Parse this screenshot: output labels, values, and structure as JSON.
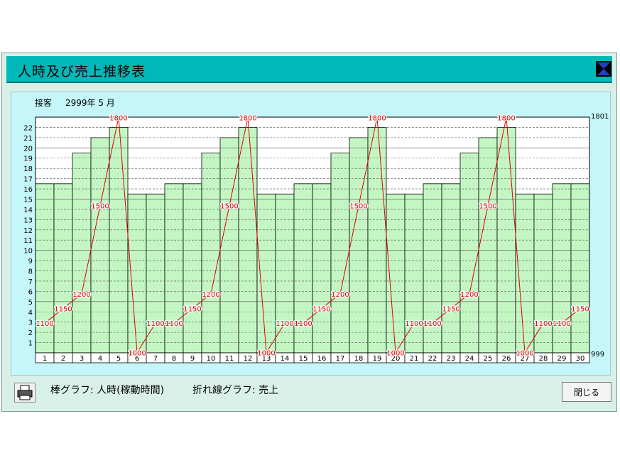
{
  "window": {
    "title": "人時及び売上推移表",
    "close_icon": "close-icon",
    "colors": {
      "titlebar": "#00b8b8",
      "content": "#c4f6fa",
      "bar": "#c4f6c4",
      "line": "#e00000"
    }
  },
  "header": {
    "label": "接客",
    "period": "2999年 5 月"
  },
  "footer": {
    "print_icon": "printer-icon",
    "bar_legend": "棒グラフ: 人時(稼動時間)",
    "line_legend": "折れ線グラフ: 売上",
    "close_label": "閉じる"
  },
  "chart_data": {
    "type": "bar+line",
    "categories": [
      "1",
      "2",
      "3",
      "4",
      "5",
      "6",
      "7",
      "8",
      "9",
      "10",
      "11",
      "12",
      "13",
      "14",
      "15",
      "16",
      "17",
      "18",
      "19",
      "20",
      "21",
      "22",
      "23",
      "24",
      "25",
      "26",
      "27",
      "28",
      "29",
      "30"
    ],
    "y_ticks": [
      "1",
      "2",
      "3",
      "4",
      "5",
      "6",
      "7",
      "8",
      "9",
      "10",
      "11",
      "12",
      "13",
      "14",
      "15",
      "16",
      "17",
      "18",
      "19",
      "20",
      "21",
      "22"
    ],
    "ylim": [
      0,
      23
    ],
    "series": [
      {
        "type": "bar",
        "values": [
          16.5,
          16.5,
          19.5,
          21,
          22,
          15.5,
          15.5,
          16.5,
          16.5,
          19.5,
          21,
          22,
          15.5,
          15.5,
          16.5,
          16.5,
          19.5,
          21,
          22,
          15.5,
          15.5,
          16.5,
          16.5,
          19.5,
          21,
          22,
          15.5,
          15.5,
          16.5,
          16.5
        ]
      },
      {
        "type": "line",
        "values": [
          1100,
          1150,
          1200,
          1500,
          1800,
          1000,
          1100,
          1100,
          1150,
          1200,
          1500,
          1800,
          1000,
          1100,
          1100,
          1150,
          1200,
          1500,
          1800,
          1000,
          1100,
          1100,
          1150,
          1200,
          1500,
          1800,
          1000,
          1100,
          1100,
          1150
        ],
        "labels": [
          "1100",
          "1150",
          "1200",
          "1500",
          "1800",
          "1000",
          "1100",
          "1100",
          "1150",
          "1200",
          "1500",
          "1800",
          "1000",
          "1100",
          "1100",
          "1150",
          "1200",
          "1500",
          "1800",
          "1000",
          "1100",
          "1100",
          "1150",
          "1200",
          "1500",
          "1800",
          "1000",
          "1100",
          "1100",
          "1150"
        ],
        "ylim": [
          999,
          1801
        ],
        "axis_max_label": "1801",
        "axis_min_label": "999"
      }
    ],
    "grid": true
  }
}
